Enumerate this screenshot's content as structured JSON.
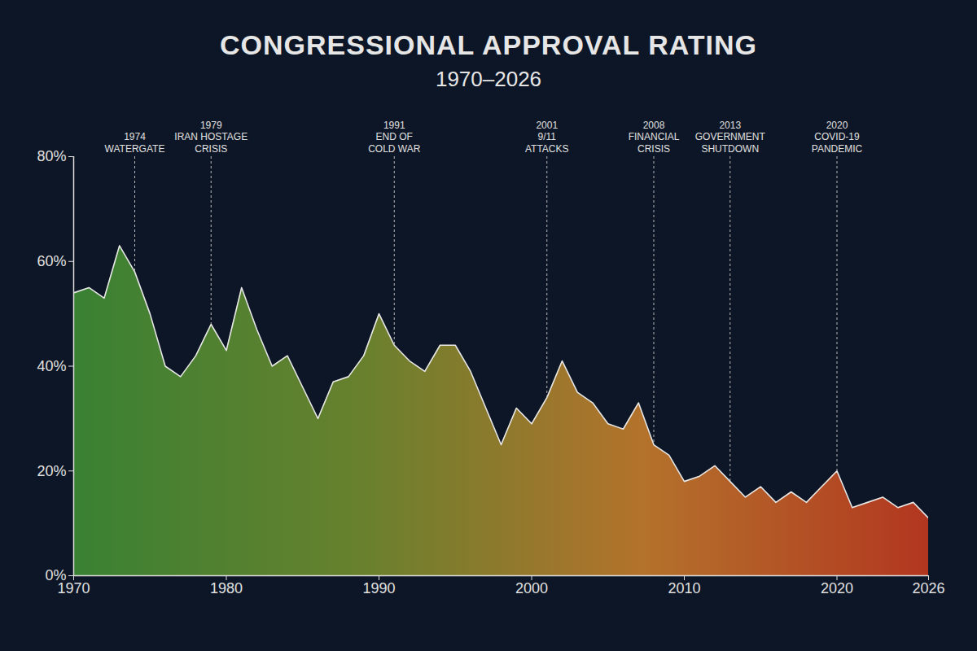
{
  "chart_data": {
    "type": "area",
    "title": "CONGRESSIONAL APPROVAL RATING",
    "subtitle": "1970–2026",
    "x": [
      1970,
      1971,
      1972,
      1973,
      1974,
      1975,
      1976,
      1977,
      1978,
      1979,
      1980,
      1981,
      1982,
      1983,
      1984,
      1985,
      1986,
      1987,
      1988,
      1989,
      1990,
      1991,
      1992,
      1993,
      1994,
      1995,
      1996,
      1997,
      1998,
      1999,
      2000,
      2001,
      2002,
      2003,
      2004,
      2005,
      2006,
      2007,
      2008,
      2009,
      2010,
      2011,
      2012,
      2013,
      2014,
      2015,
      2016,
      2017,
      2018,
      2019,
      2020,
      2021,
      2022,
      2023,
      2024,
      2025,
      2026
    ],
    "values": [
      54,
      55,
      53,
      63,
      58,
      50,
      40,
      38,
      42,
      48,
      43,
      55,
      47,
      40,
      42,
      36,
      30,
      37,
      38,
      42,
      50,
      44,
      41,
      39,
      44,
      44,
      39,
      32,
      25,
      32,
      29,
      34,
      41,
      35,
      33,
      29,
      28,
      33,
      25,
      23,
      18,
      19,
      21,
      18,
      15,
      17,
      14,
      16,
      14,
      17,
      20,
      13,
      14,
      15,
      13,
      14,
      11
    ],
    "color": "#e6e6e6",
    "colors": [
      "#3d8a34",
      "#6f8a2e",
      "#c27a2c",
      "#c0391f"
    ],
    "xlim": [
      1970,
      2026
    ],
    "xticks": [
      1970,
      1980,
      1990,
      2000,
      2010,
      2020,
      2026
    ],
    "ylim": [
      0,
      80
    ],
    "yticks": [
      {
        "value": 0,
        "label": "0%"
      },
      {
        "value": 20,
        "label": "20%"
      },
      {
        "value": 40,
        "label": "40%"
      },
      {
        "value": 60,
        "label": "60%"
      },
      {
        "value": 80,
        "label": "80%"
      }
    ],
    "grid": false,
    "annotations": [
      {
        "x": 1974,
        "text": "WATERGATE"
      },
      {
        "x": 1979,
        "text": "IRAN HOSTAGE\nCRISIS"
      },
      {
        "x": 1991,
        "text": "END OF\nCOLD WAR"
      },
      {
        "x": 2001,
        "text": "9/11\nATTACKS"
      },
      {
        "x": 2008,
        "text": "FINANCIAL\nCRISIS"
      },
      {
        "x": 2013,
        "text": "GOVERNMENT\nSHUTDOWN"
      },
      {
        "x": 2020,
        "text": "COVID-19\nPANDEMIC"
      }
    ]
  }
}
